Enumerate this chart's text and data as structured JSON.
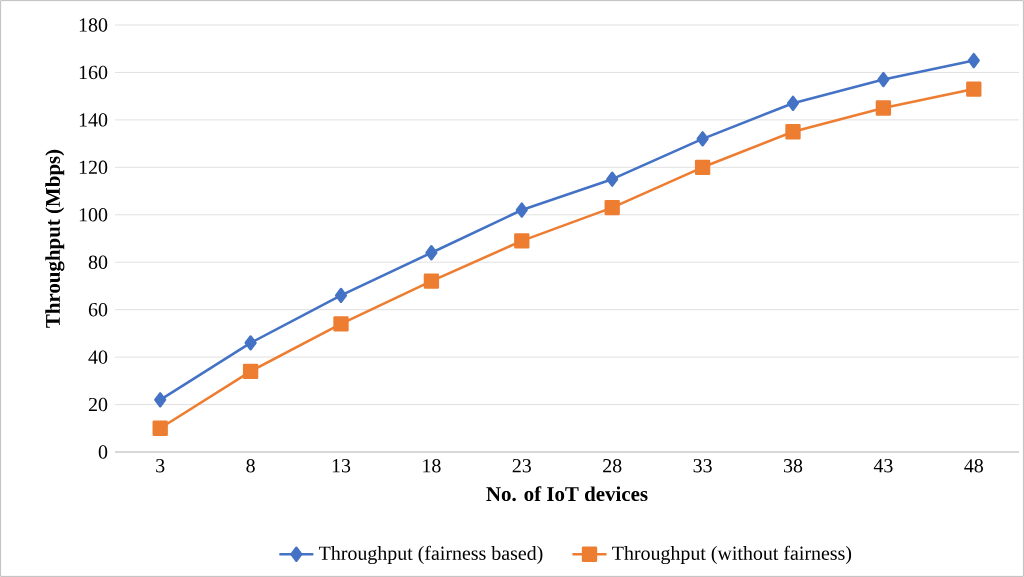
{
  "chart_data": {
    "type": "line",
    "xlabel": "No. of IoT devices",
    "ylabel": "Throughput (Mbps)",
    "categories": [
      "3",
      "8",
      "13",
      "18",
      "23",
      "28",
      "33",
      "38",
      "43",
      "48"
    ],
    "series": [
      {
        "name": "Throughput (fairness based)",
        "color": "#4472c4",
        "marker": "diamond",
        "values": [
          22,
          46,
          66,
          84,
          102,
          115,
          132,
          147,
          157,
          165
        ]
      },
      {
        "name": "Throughput (without fairness)",
        "color": "#ed7d31",
        "marker": "square",
        "values": [
          10,
          34,
          54,
          72,
          89,
          103,
          120,
          135,
          145,
          153
        ]
      }
    ],
    "ylim": [
      0,
      180
    ],
    "yticks": [
      0,
      20,
      40,
      60,
      80,
      100,
      120,
      140,
      160,
      180
    ],
    "grid": "y",
    "legend": "bottom",
    "line_style": "solid"
  }
}
